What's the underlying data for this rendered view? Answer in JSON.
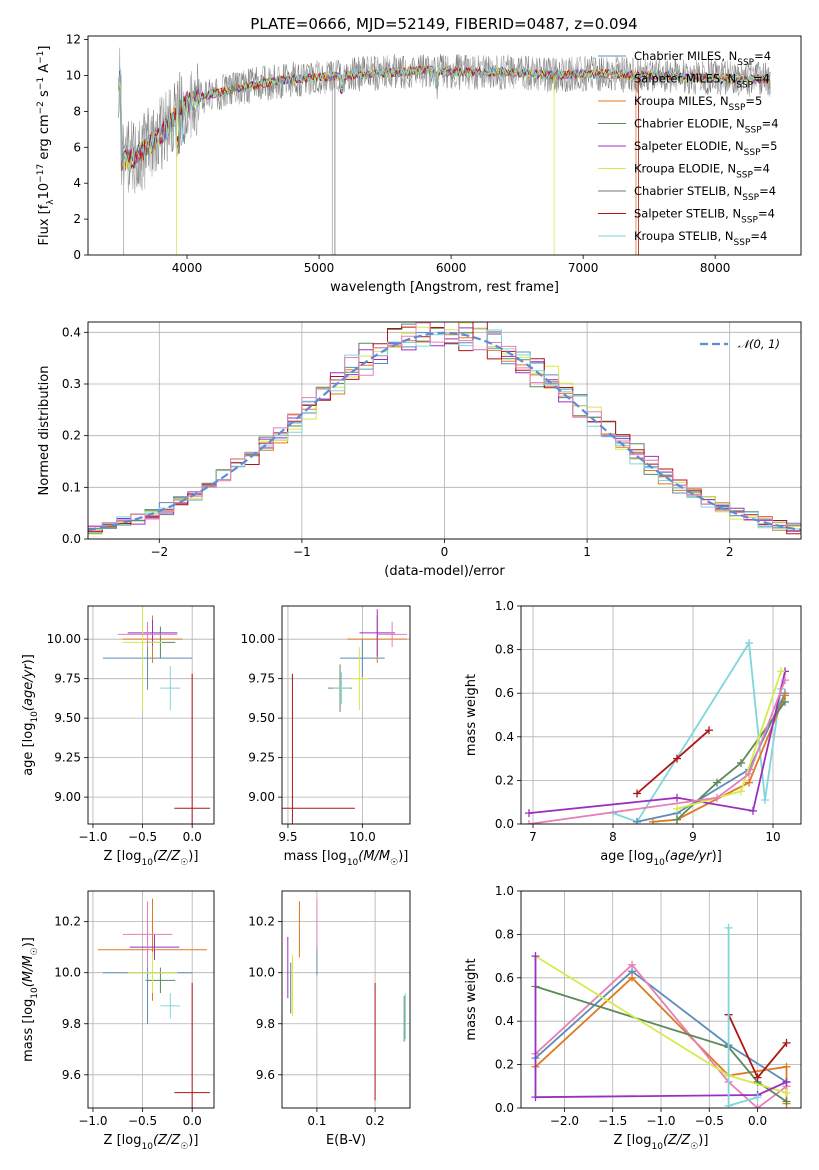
{
  "title": "PLATE=0666, MJD=52149, FIBERID=0487, z=0.094",
  "colors": {
    "chabrier_miles": "#5b8db8",
    "salpeter_miles": "#a8a8a8",
    "kroupa_miles": "#e07a1f",
    "chabrier_elodie": "#5a8a5a",
    "salpeter_elodie": "#9b30c0",
    "kroupa_elodie": "#d7ea4a",
    "chabrier_stelib": "#777777",
    "salpeter_stelib": "#b01515",
    "kroupa_stelib": "#7fd6dc",
    "pink": "#e77fb8",
    "normal": "#5b8dd6"
  },
  "chart_data": [
    {
      "type": "line",
      "panel": "spectrum",
      "xlabel": "wavelength [Angstrom, rest frame]",
      "ylabel": "Flux [f_λ 10^-17 erg cm^-2 s^-1 A^-1]",
      "xlim": [
        3250,
        8650
      ],
      "ylim": [
        0,
        12.2
      ],
      "xticks": [
        "4000",
        "5000",
        "6000",
        "7000",
        "8000"
      ],
      "yticks": [
        "0",
        "2",
        "4",
        "6",
        "8",
        "10",
        "12"
      ],
      "grid": false,
      "legend_position": "right",
      "series": [
        {
          "name": "Chabrier MILES, N_SSP=4",
          "color_key": "chabrier_miles"
        },
        {
          "name": "Salpeter MILES, N_SSP=4",
          "color_key": "salpeter_miles"
        },
        {
          "name": "Kroupa MILES, N_SSP=5",
          "color_key": "kroupa_miles"
        },
        {
          "name": "Chabrier ELODIE, N_SSP=4",
          "color_key": "chabrier_elodie"
        },
        {
          "name": "Salpeter ELODIE, N_SSP=5",
          "color_key": "salpeter_elodie"
        },
        {
          "name": "Kroupa ELODIE, N_SSP=4",
          "color_key": "kroupa_elodie"
        },
        {
          "name": "Chabrier STELIB, N_SSP=4",
          "color_key": "chabrier_stelib"
        },
        {
          "name": "Salpeter STELIB, N_SSP=4",
          "color_key": "salpeter_stelib"
        },
        {
          "name": "Kroupa STELIB, N_SSP=4",
          "color_key": "kroupa_stelib"
        }
      ],
      "continuum": {
        "x": [
          3500,
          3600,
          3700,
          3800,
          3900,
          4000,
          4200,
          4400,
          4600,
          4800,
          5000,
          5200,
          5400,
          5600,
          5800,
          6000,
          6200,
          6400,
          6600,
          6800,
          7000,
          7200,
          7400,
          7600,
          7800,
          8000,
          8200,
          8400
        ],
        "y": [
          5.2,
          5.4,
          6.0,
          6.7,
          7.6,
          8.5,
          9.0,
          9.3,
          9.6,
          9.8,
          9.9,
          10.0,
          10.1,
          10.2,
          10.3,
          10.2,
          10.2,
          10.2,
          10.1,
          10.0,
          10.1,
          10.1,
          10.0,
          10.0,
          9.9,
          9.9,
          9.8,
          9.8
        ]
      }
    },
    {
      "type": "histogram",
      "panel": "residuals",
      "xlabel": "(data-model)/error",
      "ylabel": "Normed distribution",
      "xlim": [
        -2.5,
        2.5
      ],
      "ylim": [
        0,
        0.42
      ],
      "xticks": [
        "−2",
        "−1",
        "0",
        "1",
        "2"
      ],
      "yticks": [
        "0.0",
        "0.1",
        "0.2",
        "0.3",
        "0.4"
      ],
      "grid": true,
      "legend": [
        "𝒩(0, 1)"
      ],
      "legend_position": "top-right",
      "bin_width": 0.1
    },
    {
      "type": "scatter",
      "panel": "age_vs_Z",
      "xlabel": "Z [log10(Z/Z☉)]",
      "ylabel": "age  [log10(age/yr)]",
      "xlim": [
        -1.05,
        0.22
      ],
      "ylim": [
        8.83,
        10.21
      ],
      "xticks": [
        "−1.0",
        "−0.5",
        "0.0"
      ],
      "yticks": [
        "9.00",
        "9.25",
        "9.50",
        "9.75",
        "10.00"
      ],
      "grid": true,
      "points": [
        {
          "color_key": "chabrier_miles",
          "x": -0.45,
          "xerr": 0.45,
          "y": 9.88,
          "yerr": 0.2
        },
        {
          "color_key": "kroupa_miles",
          "x": -0.4,
          "xerr": 0.3,
          "y": 10.0,
          "yerr": 0.15
        },
        {
          "color_key": "chabrier_elodie",
          "x": -0.32,
          "xerr": 0.15,
          "y": 9.98,
          "yerr": 0.1
        },
        {
          "color_key": "salpeter_elodie",
          "x": -0.4,
          "xerr": 0.25,
          "y": 10.04,
          "yerr": 0.08
        },
        {
          "color_key": "kroupa_elodie",
          "x": -0.5,
          "xerr": 0.2,
          "y": 9.98,
          "yerr": 0.43
        },
        {
          "color_key": "salpeter_stelib",
          "x": 0.0,
          "xerr": 0.18,
          "y": 8.93,
          "yerr": 0.85
        },
        {
          "color_key": "kroupa_stelib",
          "x": -0.22,
          "xerr": 0.1,
          "y": 9.69,
          "yerr": 0.14
        },
        {
          "color_key": "pink",
          "x": -0.45,
          "xerr": 0.3,
          "y": 10.03,
          "yerr": 0.08
        }
      ]
    },
    {
      "type": "scatter",
      "panel": "age_vs_mass",
      "xlabel": "mass [log10(M/M☉)]",
      "ylabel": "",
      "xlim": [
        9.46,
        10.32
      ],
      "ylim": [
        8.83,
        10.21
      ],
      "xticks": [
        "9.5",
        "10.0"
      ],
      "yticks": [
        "9.00",
        "9.25",
        "9.50",
        "9.75",
        "10.00"
      ],
      "grid": true,
      "points": [
        {
          "color_key": "chabrier_miles",
          "x": 10.0,
          "xerr": 0.15,
          "y": 9.88,
          "yerr": 0.12
        },
        {
          "color_key": "kroupa_miles",
          "x": 10.1,
          "xerr": 0.2,
          "y": 10.0,
          "yerr": 0.15
        },
        {
          "color_key": "chabrier_elodie",
          "x": 9.85,
          "xerr": 0.08,
          "y": 9.69,
          "yerr": 0.15
        },
        {
          "color_key": "salpeter_elodie",
          "x": 10.1,
          "xerr": 0.12,
          "y": 10.04,
          "yerr": 0.15
        },
        {
          "color_key": "kroupa_elodie",
          "x": 9.98,
          "xerr": 0.06,
          "y": 9.75,
          "yerr": 0.2
        },
        {
          "color_key": "salpeter_stelib",
          "x": 9.53,
          "xerr": 0.42,
          "y": 8.93,
          "yerr": 0.85
        },
        {
          "color_key": "kroupa_stelib",
          "x": 9.86,
          "xerr": 0.06,
          "y": 9.69,
          "yerr": 0.1
        },
        {
          "color_key": "pink",
          "x": 10.2,
          "xerr": 0.1,
          "y": 10.03,
          "yerr": 0.08
        }
      ]
    },
    {
      "type": "line",
      "panel": "weight_vs_age",
      "xlabel": "age  [log10(age/yr)]",
      "ylabel": "mass weight",
      "xlim": [
        6.85,
        10.35
      ],
      "ylim": [
        0,
        1.0
      ],
      "xticks": [
        "7",
        "8",
        "9",
        "10"
      ],
      "yticks": [
        "0.0",
        "0.2",
        "0.4",
        "0.6",
        "0.8",
        "1.0"
      ],
      "grid": true,
      "series": [
        {
          "color_key": "kroupa_stelib",
          "x": [
            8.0,
            8.3,
            9.7,
            9.9,
            10.1
          ],
          "y": [
            0.05,
            0.01,
            0.83,
            0.11,
            0.62
          ]
        },
        {
          "color_key": "chabrier_miles",
          "x": [
            8.3,
            8.8,
            9.7,
            10.15
          ],
          "y": [
            0.01,
            0.05,
            0.25,
            0.6
          ]
        },
        {
          "color_key": "kroupa_miles",
          "x": [
            8.5,
            8.8,
            9.7,
            10.15
          ],
          "y": [
            0.01,
            0.02,
            0.19,
            0.59
          ]
        },
        {
          "color_key": "chabrier_elodie",
          "x": [
            8.8,
            9.3,
            9.6,
            10.15
          ],
          "y": [
            0.02,
            0.19,
            0.28,
            0.56
          ]
        },
        {
          "color_key": "salpeter_elodie",
          "x": [
            6.95,
            8.8,
            9.75,
            10.15
          ],
          "y": [
            0.05,
            0.12,
            0.06,
            0.7
          ]
        },
        {
          "color_key": "kroupa_elodie",
          "x": [
            8.8,
            9.6,
            10.1
          ],
          "y": [
            0.07,
            0.15,
            0.7
          ]
        },
        {
          "color_key": "salpeter_stelib",
          "x": [
            8.3,
            8.8,
            9.2
          ],
          "y": [
            0.14,
            0.3,
            0.43
          ]
        },
        {
          "color_key": "pink",
          "x": [
            6.95,
            9.3,
            9.7,
            10.15
          ],
          "y": [
            0.0,
            0.12,
            0.23,
            0.66
          ]
        }
      ]
    },
    {
      "type": "scatter",
      "panel": "mass_vs_Z",
      "xlabel": "Z [log10(Z/Z☉)]",
      "ylabel": "mass [log10(M/M☉)]",
      "xlim": [
        -1.05,
        0.22
      ],
      "ylim": [
        9.47,
        10.32
      ],
      "xticks": [
        "−1.0",
        "−0.5",
        "0.0"
      ],
      "yticks": [
        "9.6",
        "9.8",
        "10.0",
        "10.2"
      ],
      "grid": true,
      "points": [
        {
          "color_key": "chabrier_miles",
          "x": -0.45,
          "xerr": 0.45,
          "y": 10.0,
          "yerr": 0.2
        },
        {
          "color_key": "kroupa_miles",
          "x": -0.4,
          "xerr": 0.55,
          "y": 10.09,
          "yerr": 0.2
        },
        {
          "color_key": "chabrier_elodie",
          "x": -0.32,
          "xerr": 0.15,
          "y": 9.97,
          "yerr": 0.05
        },
        {
          "color_key": "salpeter_elodie",
          "x": -0.38,
          "xerr": 0.25,
          "y": 10.1,
          "yerr": 0.05
        },
        {
          "color_key": "kroupa_elodie",
          "x": -0.4,
          "xerr": 0.25,
          "y": 10.0,
          "yerr": 0.08
        },
        {
          "color_key": "salpeter_stelib",
          "x": 0.0,
          "xerr": 0.18,
          "y": 9.53,
          "yerr": 0.43
        },
        {
          "color_key": "kroupa_stelib",
          "x": -0.22,
          "xerr": 0.1,
          "y": 9.87,
          "yerr": 0.05
        },
        {
          "color_key": "pink",
          "x": -0.45,
          "xerr": 0.25,
          "y": 10.15,
          "yerr": 0.13
        }
      ]
    },
    {
      "type": "scatter",
      "panel": "mass_vs_ebv",
      "xlabel": "E(B-V)",
      "ylabel": "",
      "xlim": [
        0.04,
        0.26
      ],
      "ylim": [
        9.47,
        10.32
      ],
      "xticks": [
        "0.1",
        "0.2"
      ],
      "yticks": [
        "9.6",
        "9.8",
        "10.0",
        "10.2"
      ],
      "grid": true,
      "points": [
        {
          "color_key": "salpeter_elodie",
          "x": 0.05,
          "y": 10.02,
          "yerr": 0.12
        },
        {
          "color_key": "chabrier_elodie",
          "x": 0.055,
          "y": 9.94,
          "yerr": 0.1
        },
        {
          "color_key": "kroupa_elodie",
          "x": 0.058,
          "y": 9.95,
          "yerr": 0.12
        },
        {
          "color_key": "kroupa_miles",
          "x": 0.07,
          "y": 10.17,
          "yerr": 0.11
        },
        {
          "color_key": "chabrier_miles",
          "x": 0.1,
          "y": 10.05,
          "yerr": 0.06
        },
        {
          "color_key": "pink",
          "x": 0.1,
          "y": 10.19,
          "yerr": 0.1
        },
        {
          "color_key": "salpeter_stelib",
          "x": 0.2,
          "y": 9.73,
          "yerr": 0.23
        },
        {
          "color_key": "chabrier_elodie",
          "x": 0.25,
          "y": 9.82,
          "yerr": 0.09
        },
        {
          "color_key": "kroupa_stelib",
          "x": 0.252,
          "y": 9.83,
          "yerr": 0.09
        }
      ]
    },
    {
      "type": "line",
      "panel": "weight_vs_Z",
      "xlabel": "Z [log10(Z/Z☉)]",
      "ylabel": "mass weight",
      "xlim": [
        -2.45,
        0.45
      ],
      "ylim": [
        0,
        1.0
      ],
      "xticks": [
        "−2.0",
        "−1.5",
        "−1.0",
        "−0.5",
        "0.0"
      ],
      "yticks": [
        "0.0",
        "0.2",
        "0.4",
        "0.6",
        "0.8",
        "1.0"
      ],
      "grid": true,
      "series": [
        {
          "color_key": "chabrier_miles",
          "x": [
            -2.3,
            -1.3,
            -0.3,
            0.3
          ],
          "y": [
            0.23,
            0.63,
            0.29,
            0.12
          ]
        },
        {
          "color_key": "kroupa_miles",
          "x": [
            -2.3,
            -1.3,
            -0.3,
            0.3,
            0.3
          ],
          "y": [
            0.19,
            0.6,
            0.15,
            0.19,
            0.02
          ]
        },
        {
          "color_key": "pink",
          "x": [
            -2.3,
            -1.3,
            -0.3,
            0.0,
            0.3
          ],
          "y": [
            0.25,
            0.66,
            0.12,
            0.0,
            0.1
          ]
        },
        {
          "color_key": "chabrier_elodie",
          "x": [
            -2.3,
            -0.3,
            0.0,
            0.3
          ],
          "y": [
            0.56,
            0.28,
            0.12,
            0.03
          ]
        },
        {
          "color_key": "kroupa_elodie",
          "x": [
            -2.3,
            -0.3,
            0.3
          ],
          "y": [
            0.7,
            0.15,
            0.07
          ]
        },
        {
          "color_key": "salpeter_elodie",
          "x": [
            -2.3,
            -2.3,
            0.0,
            0.3
          ],
          "y": [
            0.7,
            0.05,
            0.06,
            0.12
          ]
        },
        {
          "color_key": "salpeter_stelib",
          "x": [
            -0.3,
            0.0,
            0.3
          ],
          "y": [
            0.43,
            0.14,
            0.3
          ]
        },
        {
          "color_key": "kroupa_stelib",
          "x": [
            -0.3,
            -0.3,
            0.0
          ],
          "y": [
            0.83,
            0.01,
            0.05
          ]
        }
      ]
    }
  ]
}
